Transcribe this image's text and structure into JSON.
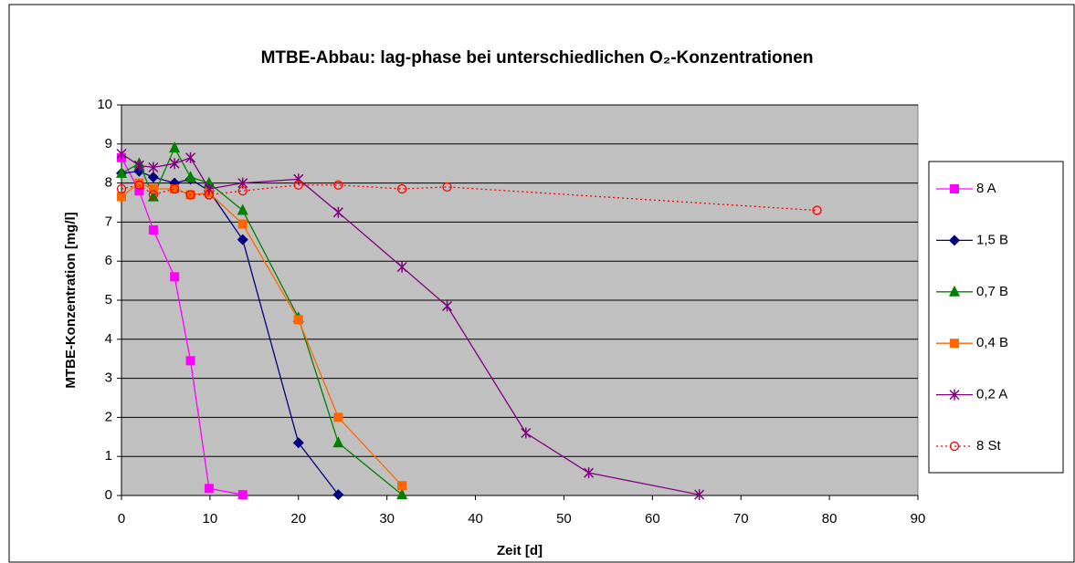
{
  "chart_data": {
    "type": "line",
    "title": "MTBE-Abbau: lag-phase bei unterschiedlichen O₂-Konzentrationen",
    "xlabel": "Zeit [d]",
    "ylabel": "MTBE-Konzentration [mg/l]",
    "xlim": [
      0,
      90
    ],
    "xticks": [
      0,
      10,
      20,
      30,
      40,
      50,
      60,
      70,
      80,
      90
    ],
    "ylim": [
      0,
      10
    ],
    "yticks": [
      0,
      1,
      2,
      3,
      4,
      5,
      6,
      7,
      8,
      9,
      10
    ],
    "grid": true,
    "legend": "right",
    "series": [
      {
        "name": "8 A",
        "color": "#ff00ff",
        "marker": "square",
        "dash": "solid",
        "x": [
          0,
          2,
          3.6,
          6,
          7.8,
          9.9,
          13.7
        ],
        "values": [
          8.65,
          7.8,
          6.8,
          5.6,
          3.45,
          0.18,
          0.02
        ]
      },
      {
        "name": "1,5 B",
        "color": "#000080",
        "marker": "diamond",
        "dash": "solid",
        "x": [
          0,
          2,
          3.6,
          6,
          7.8,
          9.9,
          13.7,
          20,
          24.5
        ],
        "values": [
          8.25,
          8.3,
          8.15,
          8.0,
          8.1,
          7.8,
          6.55,
          1.35,
          0.02
        ]
      },
      {
        "name": "0,7 B",
        "color": "#008000",
        "marker": "triangle",
        "dash": "solid",
        "x": [
          0,
          2,
          3.6,
          6,
          7.8,
          9.9,
          13.7,
          20,
          24.5,
          31.7
        ],
        "values": [
          8.25,
          8.5,
          7.65,
          8.9,
          8.15,
          8.0,
          7.3,
          4.55,
          1.35,
          0.02
        ]
      },
      {
        "name": "0,4 B",
        "color": "#ff6600",
        "marker": "square",
        "dash": "solid",
        "x": [
          0,
          2,
          3.6,
          6,
          7.8,
          9.9,
          13.7,
          20,
          24.5,
          31.7
        ],
        "values": [
          7.65,
          8.0,
          7.85,
          7.85,
          7.7,
          7.75,
          6.95,
          4.5,
          2.0,
          0.25
        ]
      },
      {
        "name": "0,2 A",
        "color": "#800080",
        "marker": "star",
        "dash": "solid",
        "x": [
          0,
          2,
          3.6,
          6,
          7.8,
          9.9,
          13.7,
          20,
          24.5,
          31.7,
          36.8,
          45.7,
          52.8,
          65.3
        ],
        "values": [
          8.75,
          8.45,
          8.4,
          8.5,
          8.65,
          7.85,
          8.0,
          8.1,
          7.25,
          5.85,
          4.85,
          1.6,
          0.58,
          0.02
        ]
      },
      {
        "name": "8 St",
        "color": "#ff0000",
        "marker": "circle",
        "dash": "dotted",
        "x": [
          0,
          2,
          3.6,
          6,
          7.8,
          9.9,
          13.7,
          20,
          24.5,
          31.7,
          36.8,
          78.6
        ],
        "values": [
          7.85,
          7.95,
          7.7,
          7.85,
          7.7,
          7.7,
          7.8,
          7.95,
          7.95,
          7.85,
          7.9,
          7.3
        ]
      }
    ]
  }
}
